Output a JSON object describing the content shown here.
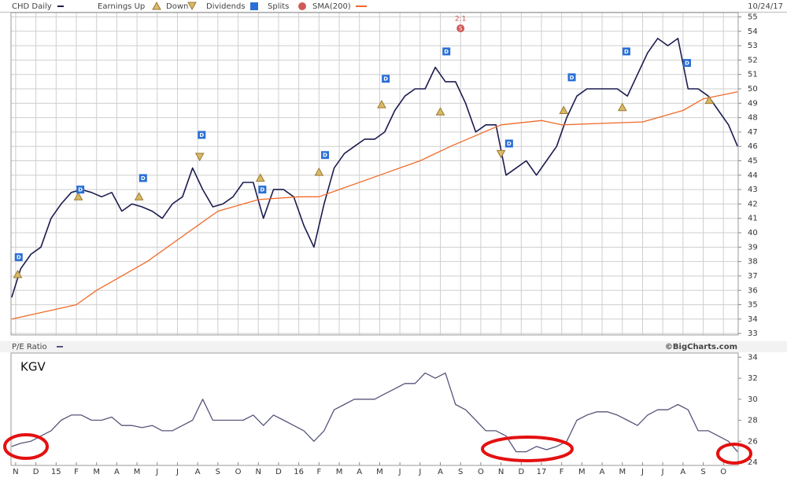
{
  "chart_data": [
    {
      "type": "line",
      "title": "CHD Daily",
      "date": "10/24/17",
      "legend": {
        "earnings": "Earnings Up",
        "down": "Down",
        "dividends": "Dividends",
        "splits": "Splits"
      },
      "xlim": [
        -0.23,
        35.73
      ],
      "ylim": [
        32.9,
        55.3
      ],
      "yticks": [
        33,
        34,
        35,
        36,
        37,
        38,
        39,
        40,
        41,
        42,
        43,
        44,
        45,
        46,
        47,
        48,
        49,
        50,
        51,
        52,
        53,
        54,
        55
      ],
      "grid": true,
      "series": [
        {
          "name": "CHD Daily",
          "color": "#1c1c50",
          "x": [
            -0.2,
            0.25,
            0.75,
            1.25,
            1.75,
            2.25,
            2.75,
            3.25,
            3.75,
            4.25,
            4.75,
            5.25,
            5.75,
            6.25,
            6.75,
            7.25,
            7.75,
            8.25,
            8.75,
            9.25,
            9.75,
            10.25,
            10.75,
            11.25,
            11.75,
            12.25,
            12.75,
            13.25,
            13.75,
            14.25,
            14.75,
            15.25,
            15.75,
            16.25,
            16.75,
            17.25,
            17.75,
            18.25,
            18.75,
            19.25,
            19.75,
            20.25,
            20.75,
            21.25,
            21.75,
            22.25,
            22.75,
            23.25,
            23.75,
            24.25,
            24.75,
            25.25,
            25.75,
            26.25,
            26.75,
            27.25,
            27.75,
            28.25,
            28.75,
            29.25,
            29.75,
            30.25,
            30.75,
            31.25,
            31.75,
            32.25,
            32.75,
            33.25,
            33.75,
            34.25,
            34.75,
            35.25,
            35.7
          ],
          "values": [
            35.5,
            37.5,
            38.5,
            39,
            41,
            42,
            42.8,
            43,
            42.8,
            42.5,
            42.8,
            41.5,
            42,
            41.8,
            41.5,
            41,
            42,
            42.5,
            44.5,
            43,
            41.8,
            42,
            42.5,
            43.5,
            43.5,
            41,
            43,
            43,
            42.5,
            40.5,
            39,
            42,
            44.5,
            45.5,
            46,
            46.5,
            46.5,
            47,
            48.5,
            49.5,
            50,
            50,
            51.5,
            50.5,
            50.5,
            49,
            47,
            47.5,
            47.5,
            44,
            44.5,
            45,
            44,
            45,
            46,
            48,
            49.5,
            50,
            50,
            50,
            50,
            49.5,
            51,
            52.5,
            53.5,
            53,
            53.5,
            50,
            50,
            49.5,
            48.5,
            47.5,
            46
          ]
        },
        {
          "name": "SMA(200)",
          "color": "#f06a28",
          "x": [
            -0.2,
            3,
            4,
            6.5,
            8.5,
            10,
            12,
            14,
            15,
            16,
            18,
            20,
            21.5,
            24,
            26,
            27,
            29,
            31,
            33,
            34,
            35.7
          ],
          "values": [
            34,
            35,
            36,
            38,
            40,
            41.5,
            42.3,
            42.5,
            42.5,
            43,
            44,
            45,
            46,
            47.5,
            47.8,
            47.5,
            47.6,
            47.7,
            48.5,
            49.3,
            49.8
          ]
        }
      ],
      "events": {
        "dividends": {
          "label": "D",
          "x": [
            0.15,
            3.2,
            6.3,
            9.2,
            12.2,
            15.3,
            18.3,
            21.3,
            24.4,
            27.5,
            30.2,
            33.2
          ],
          "values": [
            38.3,
            43,
            43.8,
            46.8,
            43,
            45.4,
            50.7,
            52.6,
            46.2,
            50.8,
            52.6,
            51.8
          ]
        },
        "earnings_up": {
          "x": [
            0.1,
            3.1,
            6.1,
            12.1,
            15,
            18.1,
            21,
            27.1,
            30,
            34.3
          ],
          "values": [
            37.1,
            42.5,
            42.5,
            43.8,
            44.2,
            48.9,
            48.4,
            48.5,
            48.7,
            49.2
          ]
        },
        "earnings_down": {
          "x": [
            9.1,
            24
          ],
          "values": [
            45.3,
            45.5
          ]
        },
        "splits": {
          "label": "S",
          "ratios": [
            "2:1"
          ],
          "x": [
            22
          ],
          "values": [
            54.2
          ]
        }
      }
    },
    {
      "type": "line",
      "title": "P/E Ratio",
      "credit": "©BigCharts.com",
      "annotation": "KGV",
      "xlim": [
        -0.23,
        35.73
      ],
      "ylim": [
        23.7,
        34.4
      ],
      "yticks": [
        24,
        26,
        28,
        30,
        32,
        34
      ],
      "xticks": [
        {
          "value": 0,
          "label": "N"
        },
        {
          "value": 1,
          "label": "D"
        },
        {
          "value": 2,
          "label": "15"
        },
        {
          "value": 3,
          "label": "F"
        },
        {
          "value": 4,
          "label": "M"
        },
        {
          "value": 5,
          "label": "A"
        },
        {
          "value": 6,
          "label": "M"
        },
        {
          "value": 7,
          "label": "J"
        },
        {
          "value": 8,
          "label": "J"
        },
        {
          "value": 9,
          "label": "A"
        },
        {
          "value": 10,
          "label": "S"
        },
        {
          "value": 11,
          "label": "O"
        },
        {
          "value": 12,
          "label": "N"
        },
        {
          "value": 13,
          "label": "D"
        },
        {
          "value": 14,
          "label": "16"
        },
        {
          "value": 15,
          "label": "F"
        },
        {
          "value": 16,
          "label": "M"
        },
        {
          "value": 17,
          "label": "A"
        },
        {
          "value": 18,
          "label": "M"
        },
        {
          "value": 19,
          "label": "J"
        },
        {
          "value": 20,
          "label": "J"
        },
        {
          "value": 21,
          "label": "A"
        },
        {
          "value": 22,
          "label": "S"
        },
        {
          "value": 23,
          "label": "O"
        },
        {
          "value": 24,
          "label": "N"
        },
        {
          "value": 25,
          "label": "D"
        },
        {
          "value": 26,
          "label": "17"
        },
        {
          "value": 27,
          "label": "F"
        },
        {
          "value": 28,
          "label": "M"
        },
        {
          "value": 29,
          "label": "A"
        },
        {
          "value": 30,
          "label": "M"
        },
        {
          "value": 31,
          "label": "J"
        },
        {
          "value": 32,
          "label": "J"
        },
        {
          "value": 33,
          "label": "A"
        },
        {
          "value": 34,
          "label": "S"
        },
        {
          "value": 35,
          "label": "O"
        }
      ],
      "series": [
        {
          "name": "P/E Ratio",
          "color": "#55557a",
          "x": [
            -0.2,
            0.25,
            0.75,
            1.25,
            1.75,
            2.25,
            2.75,
            3.25,
            3.75,
            4.25,
            4.75,
            5.25,
            5.75,
            6.25,
            6.75,
            7.25,
            7.75,
            8.25,
            8.75,
            9.25,
            9.75,
            10.25,
            10.75,
            11.25,
            11.75,
            12.25,
            12.75,
            13.25,
            13.75,
            14.25,
            14.75,
            15.25,
            15.75,
            16.25,
            16.75,
            17.25,
            17.75,
            18.25,
            18.75,
            19.25,
            19.75,
            20.25,
            20.75,
            21.25,
            21.75,
            22.25,
            22.75,
            23.25,
            23.75,
            24.25,
            24.75,
            25.25,
            25.75,
            26.25,
            26.75,
            27.25,
            27.75,
            28.25,
            28.75,
            29.25,
            29.75,
            30.25,
            30.75,
            31.25,
            31.75,
            32.25,
            32.75,
            33.25,
            33.75,
            34.25,
            34.75,
            35.25,
            35.7
          ],
          "values": [
            25.5,
            25.8,
            26,
            26.5,
            27,
            28,
            28.5,
            28.5,
            28,
            28,
            28.3,
            27.5,
            27.5,
            27.3,
            27.5,
            27,
            27,
            27.5,
            28,
            30,
            28,
            28,
            28,
            28,
            28.5,
            27.5,
            28.5,
            28,
            27.5,
            27,
            26,
            27,
            29,
            29.5,
            30,
            30,
            30,
            30.5,
            31,
            31.5,
            31.5,
            32.5,
            32,
            32.5,
            29.5,
            29,
            28,
            27,
            27,
            26.5,
            25,
            25,
            25.5,
            25.2,
            25.5,
            26,
            28,
            28.5,
            28.8,
            28.8,
            28.5,
            28,
            27.5,
            28.5,
            29,
            29,
            29.5,
            29,
            27,
            27,
            26.5,
            26,
            25
          ]
        }
      ]
    }
  ]
}
